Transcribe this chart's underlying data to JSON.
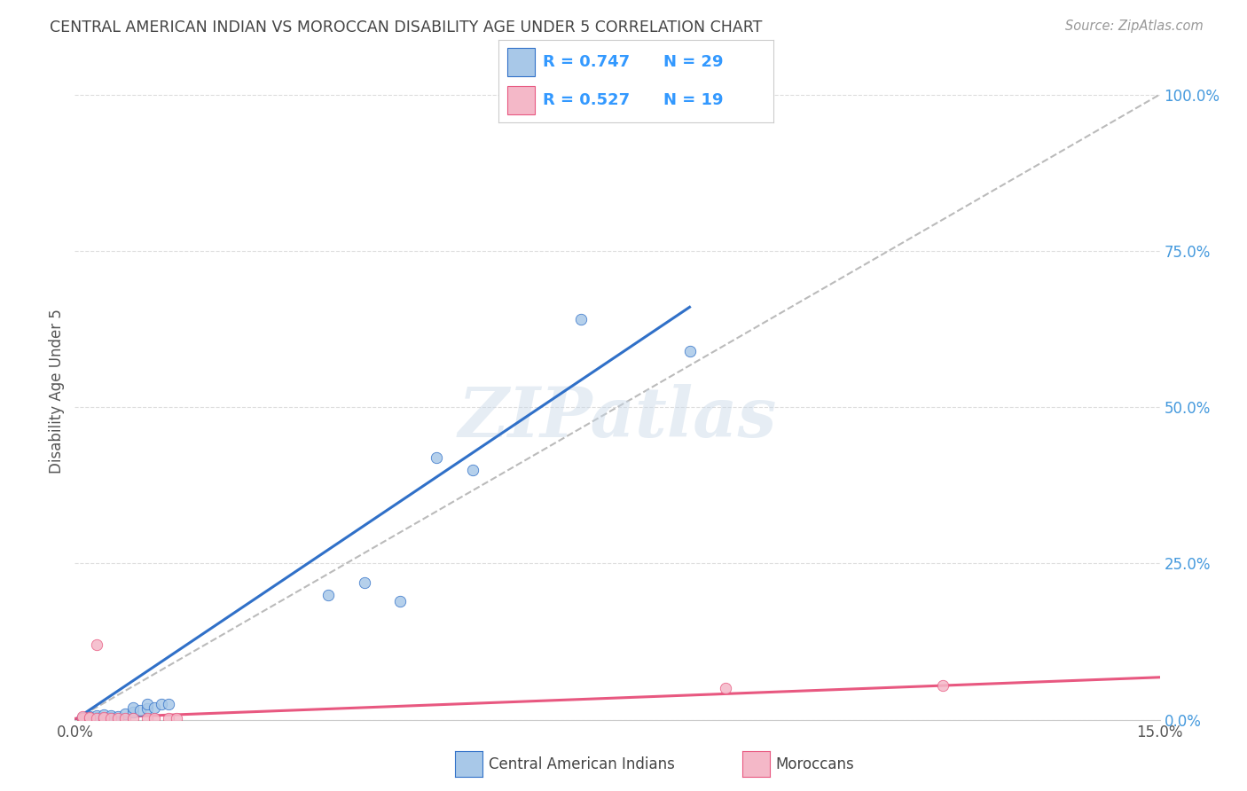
{
  "title": "CENTRAL AMERICAN INDIAN VS MOROCCAN DISABILITY AGE UNDER 5 CORRELATION CHART",
  "source": "Source: ZipAtlas.com",
  "ylabel": "Disability Age Under 5",
  "ylabel_right_ticks": [
    0.0,
    0.25,
    0.5,
    0.75,
    1.0
  ],
  "ylabel_right_labels": [
    "0.0%",
    "25.0%",
    "50.0%",
    "75.0%",
    "100.0%"
  ],
  "xmin": 0.0,
  "xmax": 0.15,
  "ymin": 0.0,
  "ymax": 1.05,
  "blue_R": 0.747,
  "blue_N": 29,
  "pink_R": 0.527,
  "pink_N": 19,
  "blue_color": "#A8C8E8",
  "pink_color": "#F4B8C8",
  "blue_line_color": "#3070C8",
  "pink_line_color": "#E85880",
  "ref_line_color": "#BBBBBB",
  "grid_color": "#DDDDDD",
  "title_color": "#444444",
  "right_tick_color": "#4499DD",
  "legend_R_color": "#3399FF",
  "legend_N_color": "#3399FF",
  "blue_scatter_x": [
    0.001,
    0.001,
    0.002,
    0.002,
    0.002,
    0.003,
    0.003,
    0.003,
    0.004,
    0.004,
    0.005,
    0.005,
    0.006,
    0.007,
    0.008,
    0.008,
    0.009,
    0.01,
    0.01,
    0.011,
    0.012,
    0.013,
    0.035,
    0.04,
    0.045,
    0.05,
    0.055,
    0.07,
    0.085
  ],
  "blue_scatter_y": [
    0.002,
    0.004,
    0.001,
    0.003,
    0.005,
    0.002,
    0.004,
    0.006,
    0.003,
    0.008,
    0.004,
    0.007,
    0.005,
    0.01,
    0.012,
    0.02,
    0.015,
    0.018,
    0.025,
    0.02,
    0.025,
    0.025,
    0.2,
    0.22,
    0.19,
    0.42,
    0.4,
    0.64,
    0.59
  ],
  "pink_scatter_x": [
    0.001,
    0.001,
    0.001,
    0.002,
    0.002,
    0.003,
    0.003,
    0.004,
    0.004,
    0.005,
    0.006,
    0.007,
    0.008,
    0.01,
    0.011,
    0.013,
    0.014,
    0.09,
    0.12
  ],
  "pink_scatter_y": [
    0.002,
    0.003,
    0.005,
    0.002,
    0.004,
    0.003,
    0.12,
    0.002,
    0.004,
    0.003,
    0.002,
    0.003,
    0.002,
    0.003,
    0.002,
    0.003,
    0.002,
    0.05,
    0.055
  ],
  "blue_line_x": [
    0.0,
    0.085
  ],
  "blue_line_y": [
    0.0,
    0.66
  ],
  "pink_line_x": [
    0.0,
    0.15
  ],
  "pink_line_y": [
    0.002,
    0.068
  ],
  "watermark": "ZIPatlas",
  "legend_label_blue": "Central American Indians",
  "legend_label_pink": "Moroccans"
}
